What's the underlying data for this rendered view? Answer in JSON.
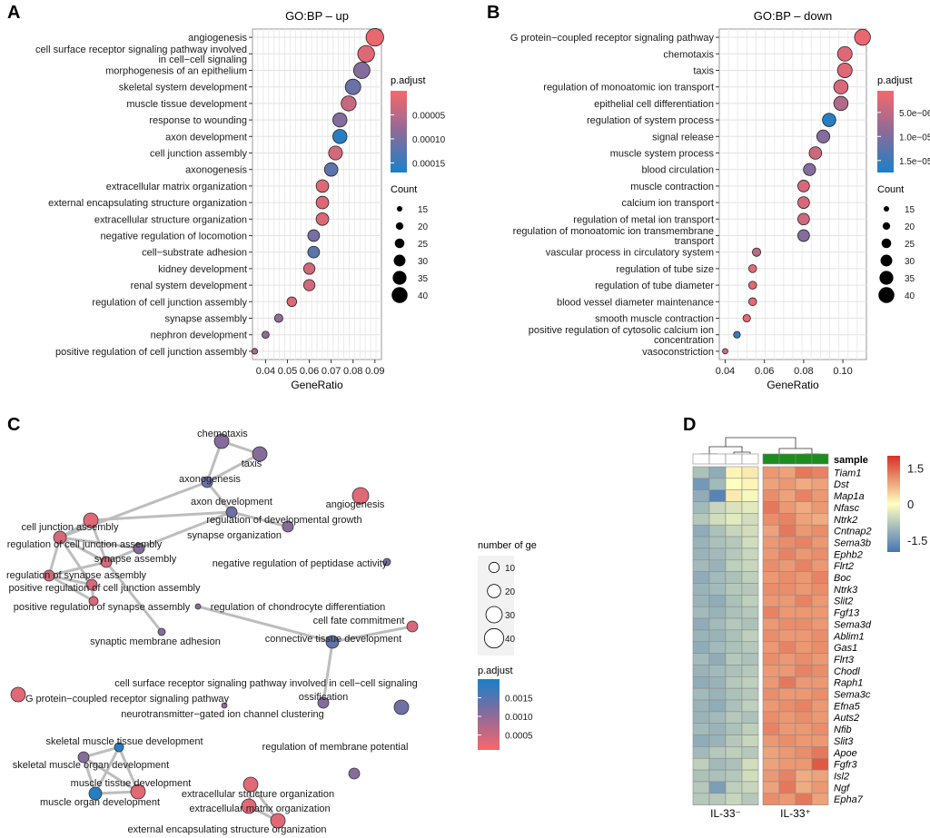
{
  "panels": {
    "a": "A",
    "b": "B",
    "c": "C",
    "d": "D"
  },
  "chart_data": [
    {
      "type": "scatter",
      "title": "GO:BP – up",
      "xlabel": "GeneRatio",
      "ylabel": "",
      "xticks": [
        "0.04",
        "0.05",
        "0.06",
        "0.07",
        "0.08",
        "0.09"
      ],
      "xlim": [
        0.034,
        0.093
      ],
      "categories": [
        "angiogenesis",
        "cell surface receptor signaling pathway involved\nin cell−cell signaling",
        "morphogenesis of an epithelium",
        "skeletal system development",
        "muscle tissue development",
        "response to wounding",
        "axon development",
        "cell junction assembly",
        "axonogenesis",
        "extracellular matrix organization",
        "external encapsulating structure organization",
        "extracellular structure organization",
        "negative regulation of locomotion",
        "cell−substrate adhesion",
        "kidney development",
        "renal system development",
        "regulation of cell junction assembly",
        "synapse assembly",
        "nephron development",
        "positive regulation of cell junction assembly"
      ],
      "x": [
        0.09,
        0.086,
        0.084,
        0.08,
        0.078,
        0.074,
        0.074,
        0.072,
        0.07,
        0.066,
        0.066,
        0.066,
        0.062,
        0.062,
        0.06,
        0.06,
        0.052,
        0.046,
        0.04,
        0.035
      ],
      "count": [
        44,
        42,
        41,
        39,
        38,
        36,
        36,
        35,
        34,
        32,
        32,
        32,
        30,
        30,
        29,
        29,
        25,
        22,
        19,
        16
      ],
      "padj": [
        1e-05,
        2e-05,
        9e-05,
        0.00011,
        4e-05,
        9e-05,
        0.00016,
        3e-05,
        0.00012,
        2e-05,
        2e-05,
        2e-05,
        0.0001,
        0.00012,
        3e-05,
        3e-05,
        2e-05,
        8e-05,
        8e-05,
        6e-05
      ],
      "color_legend": {
        "title": "p.adjust",
        "ticks": [
          "0.00005",
          "0.00010",
          "0.00015"
        ],
        "tick_values": [
          5e-05,
          0.0001,
          0.00015
        ],
        "range": [
          0.0,
          0.00017
        ],
        "low_color": "#f8676b",
        "high_color": "#1a80c8"
      },
      "size_legend": {
        "title": "Count",
        "ticks": [
          "15",
          "20",
          "25",
          "30",
          "35",
          "40"
        ],
        "values": [
          15,
          20,
          25,
          30,
          35,
          40
        ]
      }
    },
    {
      "type": "scatter",
      "title": "GO:BP – down",
      "xlabel": "GeneRatio",
      "ylabel": "",
      "xticks": [
        "0.04",
        "0.06",
        "0.08",
        "0.10"
      ],
      "xlim": [
        0.037,
        0.112
      ],
      "categories": [
        "G protein−coupled receptor signaling pathway",
        "chemotaxis",
        "taxis",
        "regulation of monoatomic ion transport",
        "epithelial cell differentiation",
        "regulation of system process",
        "signal release",
        "muscle system process",
        "blood circulation",
        "muscle contraction",
        "calcium ion transport",
        "regulation of metal ion transport",
        "regulation of monoatomic ion transmembrane\ntransport",
        "vascular process in circulatory system",
        "regulation of tube size",
        "regulation of tube diameter",
        "blood vessel diameter maintenance",
        "smooth muscle contraction",
        "positive regulation of cytosolic calcium ion\nconcentration",
        "vasoconstriction"
      ],
      "x": [
        0.11,
        0.101,
        0.101,
        0.099,
        0.099,
        0.093,
        0.09,
        0.086,
        0.083,
        0.08,
        0.08,
        0.08,
        0.08,
        0.056,
        0.054,
        0.054,
        0.054,
        0.051,
        0.046,
        0.04
      ],
      "count": [
        40,
        37,
        37,
        36,
        36,
        34,
        33,
        32,
        31,
        30,
        30,
        30,
        30,
        22,
        21,
        21,
        21,
        20,
        18,
        15
      ],
      "padj": [
        1.5e-06,
        2.5e-06,
        2.5e-06,
        3e-06,
        6e-06,
        1.65e-05,
        9.5e-06,
        4e-06,
        9.5e-06,
        3e-06,
        3e-06,
        4e-06,
        9.5e-06,
        5e-06,
        2e-06,
        2e-06,
        2e-06,
        2e-06,
        1.45e-05,
        3e-06
      ],
      "color_legend": {
        "title": "p.adjust",
        "ticks": [
          "5.0e−06",
          "1.0e−05",
          "1.5e−05"
        ],
        "tick_values": [
          5e-06,
          1e-05,
          1.5e-05
        ],
        "range": [
          5e-07,
          1.75e-05
        ],
        "low_color": "#f8676b",
        "high_color": "#1a80c8"
      },
      "size_legend": {
        "title": "Count",
        "ticks": [
          "15",
          "20",
          "25",
          "30",
          "35",
          "40"
        ],
        "values": [
          15,
          20,
          25,
          30,
          35,
          40
        ]
      }
    },
    {
      "type": "network",
      "nodes": [
        {
          "label": "chemotaxis",
          "size": 14,
          "padj": 0.0011
        },
        {
          "label": "taxis",
          "size": 14,
          "padj": 0.0011
        },
        {
          "label": "axonogenesis",
          "size": 10,
          "padj": 0.0013
        },
        {
          "label": "axon development",
          "size": 10,
          "padj": 0.0013
        },
        {
          "label": "angiogenesis",
          "size": 16,
          "padj": 0.0003
        },
        {
          "label": "regulation of developmental growth",
          "size": 10,
          "padj": 0.0011
        },
        {
          "label": "cell junction assembly",
          "size": 14,
          "padj": 0.0003
        },
        {
          "label": "synapse organization",
          "size": 10,
          "padj": 0.0011
        },
        {
          "label": "regulation of cell junction assembly",
          "size": 12,
          "padj": 0.0004
        },
        {
          "label": "synapse assembly",
          "size": 10,
          "padj": 0.0004
        },
        {
          "label": "negative regulation of peptidase activity",
          "size": 6,
          "padj": 0.0012
        },
        {
          "label": "regulation of synapse assembly",
          "size": 10,
          "padj": 0.0004
        },
        {
          "label": "positive regulation of cell junction assembly",
          "size": 10,
          "padj": 0.0004
        },
        {
          "label": "positive regulation of synapse assembly",
          "size": 8,
          "padj": 0.0004
        },
        {
          "label": "regulation of chondrocyte differentiation",
          "size": 4,
          "padj": 0.0011
        },
        {
          "label": "cell fate commitment",
          "size": 10,
          "padj": 0.0004
        },
        {
          "label": "synaptic membrane adhesion",
          "size": 6,
          "padj": 0.0011
        },
        {
          "label": "connective tissue development",
          "size": 12,
          "padj": 0.0014
        },
        {
          "label": "cell surface receptor signaling pathway involved in cell−cell signaling",
          "size": 14,
          "padj": 0.0013
        },
        {
          "label": "G protein−coupled receptor signaling pathway",
          "size": 14,
          "padj": 0.0003
        },
        {
          "label": "ossification",
          "size": 10,
          "padj": 0.0011
        },
        {
          "label": "neurotransmitter−gated ion channel clustering",
          "size": 4,
          "padj": 0.001
        },
        {
          "label": "skeletal muscle tissue development",
          "size": 8,
          "padj": 0.0019
        },
        {
          "label": "skeletal muscle organ development",
          "size": 10,
          "padj": 0.0011
        },
        {
          "label": "regulation of membrane potential",
          "size": 10,
          "padj": 0.0011
        },
        {
          "label": "muscle tissue development",
          "size": 14,
          "padj": 0.0003
        },
        {
          "label": "muscle organ development",
          "size": 12,
          "padj": 0.0019
        },
        {
          "label": "extracellular structure organization",
          "size": 14,
          "padj": 0.0003
        },
        {
          "label": "extracellular matrix organization",
          "size": 14,
          "padj": 0.0003
        },
        {
          "label": "external encapsulating structure organization",
          "size": 14,
          "padj": 0.0003
        }
      ],
      "edges": [
        [
          "chemotaxis",
          "taxis"
        ],
        [
          "chemotaxis",
          "axonogenesis"
        ],
        [
          "taxis",
          "axonogenesis"
        ],
        [
          "axonogenesis",
          "axon development"
        ],
        [
          "axon development",
          "regulation of developmental growth"
        ],
        [
          "axon development",
          "synapse organization"
        ],
        [
          "axon development",
          "cell junction assembly"
        ],
        [
          "axonogenesis",
          "regulation of cell junction assembly"
        ],
        [
          "cell junction assembly",
          "regulation of cell junction assembly"
        ],
        [
          "cell junction assembly",
          "synapse assembly"
        ],
        [
          "regulation of cell junction assembly",
          "synapse assembly"
        ],
        [
          "regulation of cell junction assembly",
          "regulation of synapse assembly"
        ],
        [
          "synapse assembly",
          "regulation of synapse assembly"
        ],
        [
          "regulation of synapse assembly",
          "positive regulation of cell junction assembly"
        ],
        [
          "regulation of cell junction assembly",
          "positive regulation of cell junction assembly"
        ],
        [
          "positive regulation of cell junction assembly",
          "positive regulation of synapse assembly"
        ],
        [
          "regulation of synapse assembly",
          "positive regulation of synapse assembly"
        ],
        [
          "synapse organization",
          "synapse assembly"
        ],
        [
          "synapse organization",
          "regulation of cell junction assembly"
        ],
        [
          "synapse assembly",
          "synaptic membrane adhesion"
        ],
        [
          "cell fate commitment",
          "connective tissue development"
        ],
        [
          "connective tissue development",
          "ossification"
        ],
        [
          "connective tissue development",
          "regulation of chondrocyte differentiation"
        ],
        [
          "skeletal muscle tissue development",
          "skeletal muscle organ development"
        ],
        [
          "skeletal muscle tissue development",
          "muscle organ development"
        ],
        [
          "skeletal muscle organ development",
          "muscle tissue development"
        ],
        [
          "skeletal muscle organ development",
          "muscle organ development"
        ],
        [
          "muscle tissue development",
          "muscle organ development"
        ],
        [
          "skeletal muscle tissue development",
          "muscle tissue development"
        ],
        [
          "extracellular structure organization",
          "extracellular matrix organization"
        ],
        [
          "extracellular structure organization",
          "external encapsulating structure organization"
        ],
        [
          "extracellular matrix organization",
          "external encapsulating structure organization"
        ]
      ],
      "size_legend": {
        "title": "number of ge",
        "ticks": [
          "10",
          "20",
          "30",
          "40"
        ],
        "values": [
          10,
          20,
          30,
          40
        ]
      },
      "color_legend": {
        "title": "p.adjust",
        "ticks": [
          "0.0015",
          "0.0010",
          "0.0005"
        ],
        "tick_values": [
          0.0015,
          0.001,
          0.0005
        ],
        "range": [
          0.0001,
          0.002
        ],
        "low_color": "#f8676b",
        "high_color": "#1a80c8"
      }
    },
    {
      "type": "heatmap",
      "annotation_title": "sample",
      "rows": [
        "Tiam1",
        "Dst",
        "Map1a",
        "Nfasc",
        "Ntrk2",
        "Cntnap2",
        "Sema3b",
        "Ephb2",
        "Flrt2",
        "Boc",
        "Ntrk3",
        "Slit2",
        "Fgf13",
        "Sema3d",
        "Ablim1",
        "Gas1",
        "Flrt3",
        "Chodl",
        "Raph1",
        "Sema3c",
        "Efna5",
        "Auts2",
        "Nfib",
        "Slit3",
        "Apoe",
        "Fgfr3",
        "Isl2",
        "Ngf",
        "Epha7"
      ],
      "group_labels": [
        "IL-33⁻",
        "IL-33⁺"
      ],
      "columns_per_group": 4,
      "values": [
        [
          -0.9,
          -1.2,
          0.1,
          0.2,
          1.0,
          0.9,
          1.3,
          1.2
        ],
        [
          -1.5,
          -1.0,
          0.0,
          0.1,
          0.9,
          1.0,
          0.8,
          0.9
        ],
        [
          -1.2,
          -1.8,
          0.2,
          -0.1,
          1.1,
          0.9,
          1.2,
          1.0
        ],
        [
          -1.0,
          -0.6,
          -0.4,
          -0.3,
          1.3,
          1.0,
          0.8,
          1.0
        ],
        [
          -0.8,
          -0.5,
          -0.3,
          -0.5,
          1.1,
          1.2,
          0.9,
          0.8
        ],
        [
          -1.2,
          -0.9,
          -0.6,
          -0.5,
          0.9,
          1.3,
          1.0,
          1.1
        ],
        [
          -1.1,
          -0.9,
          -0.8,
          -0.5,
          1.0,
          1.1,
          1.2,
          1.0
        ],
        [
          -1.1,
          -1.0,
          -0.8,
          -0.6,
          1.0,
          1.2,
          1.0,
          1.1
        ],
        [
          -1.0,
          -1.1,
          -0.7,
          -0.6,
          1.1,
          1.0,
          1.2,
          1.0
        ],
        [
          -1.2,
          -1.0,
          -0.9,
          -0.7,
          1.0,
          1.1,
          1.0,
          1.2
        ],
        [
          -1.1,
          -1.0,
          -0.8,
          -0.8,
          1.1,
          1.1,
          1.0,
          1.1
        ],
        [
          -1.1,
          -1.2,
          -0.9,
          -0.7,
          1.0,
          1.0,
          1.2,
          1.0
        ],
        [
          -1.0,
          -1.1,
          -0.9,
          -0.8,
          1.2,
          1.0,
          1.0,
          1.0
        ],
        [
          -1.2,
          -1.0,
          -0.8,
          -0.9,
          1.0,
          1.1,
          1.1,
          1.0
        ],
        [
          -1.1,
          -1.1,
          -0.9,
          -0.7,
          1.1,
          1.0,
          1.0,
          1.1
        ],
        [
          -1.2,
          -1.0,
          -0.9,
          -0.8,
          1.0,
          1.2,
          1.0,
          1.1
        ],
        [
          -1.0,
          -1.2,
          -0.8,
          -0.9,
          1.1,
          1.0,
          1.1,
          1.0
        ],
        [
          -1.1,
          -1.0,
          -0.9,
          -0.8,
          1.0,
          1.0,
          1.2,
          1.1
        ],
        [
          -1.2,
          -1.1,
          -0.8,
          -0.7,
          1.0,
          1.3,
          1.0,
          1.0
        ],
        [
          -1.0,
          -1.1,
          -0.9,
          -0.8,
          1.1,
          1.0,
          1.0,
          1.1
        ],
        [
          -1.1,
          -1.2,
          -0.9,
          -0.7,
          1.0,
          1.1,
          1.2,
          1.0
        ],
        [
          -1.1,
          -1.0,
          -0.8,
          -0.9,
          1.1,
          1.0,
          1.1,
          1.0
        ],
        [
          -1.0,
          -1.1,
          -0.9,
          -0.7,
          1.2,
          1.0,
          1.0,
          1.1
        ],
        [
          -1.2,
          -1.1,
          -0.8,
          -0.6,
          1.0,
          1.1,
          1.0,
          1.0
        ],
        [
          -1.0,
          -0.8,
          -0.7,
          -0.8,
          0.9,
          1.0,
          1.1,
          1.3
        ],
        [
          -0.7,
          -1.0,
          -0.9,
          -0.5,
          0.9,
          1.0,
          1.0,
          1.6
        ],
        [
          -0.9,
          -0.9,
          -0.8,
          -0.5,
          1.0,
          1.2,
          0.8,
          0.9
        ],
        [
          -0.8,
          -1.4,
          -0.7,
          -0.6,
          0.9,
          1.3,
          0.8,
          1.0
        ],
        [
          -0.8,
          -0.8,
          -0.6,
          -0.8,
          1.1,
          1.0,
          1.3,
          0.9
        ]
      ],
      "color_scale": {
        "ticks": [
          "1.5",
          "0",
          "-1.5"
        ],
        "tick_values": [
          1.5,
          0,
          -1.5
        ],
        "range": [
          -2,
          2
        ]
      },
      "sample_colors": [
        "#ffffff",
        "#ffffff",
        "#ffffff",
        "#ffffff",
        "#1e8c1e",
        "#1e8c1e",
        "#1e8c1e",
        "#1e8c1e"
      ]
    }
  ]
}
